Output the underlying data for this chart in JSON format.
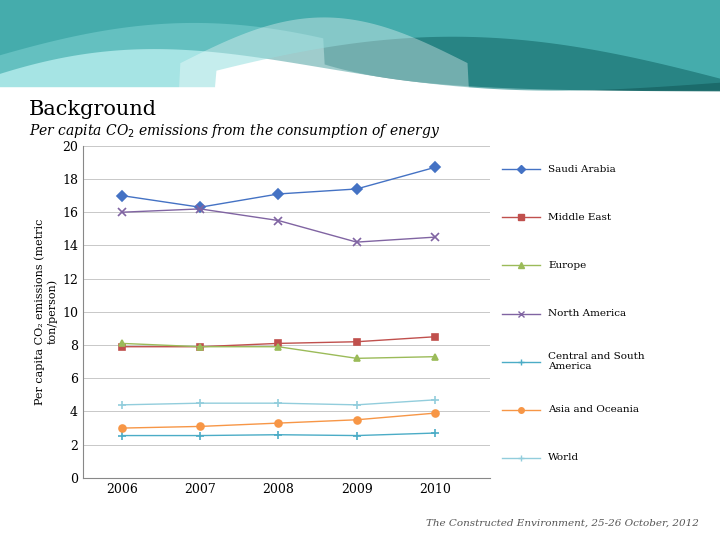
{
  "title": "Background",
  "subtitle": "Per capita CO₂ emissions from the consumption of energy",
  "ylabel": "Per capita CO₂ emissions (metric\nton/person)",
  "years": [
    2006,
    2007,
    2008,
    2009,
    2010
  ],
  "ylim": [
    0,
    20
  ],
  "yticks": [
    0,
    2,
    4,
    6,
    8,
    10,
    12,
    14,
    16,
    18,
    20
  ],
  "series": {
    "Saudi Arabia": {
      "values": [
        17.0,
        16.3,
        17.1,
        17.4,
        18.7
      ],
      "color": "#4472C4",
      "marker": "D",
      "markersize": 5
    },
    "Middle East": {
      "values": [
        7.9,
        7.9,
        8.1,
        8.2,
        8.5
      ],
      "color": "#C0504D",
      "marker": "s",
      "markersize": 5
    },
    "Europe": {
      "values": [
        8.1,
        7.9,
        7.9,
        7.2,
        7.3
      ],
      "color": "#9BBB59",
      "marker": "^",
      "markersize": 5
    },
    "North America": {
      "values": [
        16.0,
        16.2,
        15.5,
        14.2,
        14.5
      ],
      "color": "#8064A2",
      "marker": "x",
      "markersize": 6
    },
    "Central and South America": {
      "values": [
        2.55,
        2.55,
        2.6,
        2.55,
        2.7
      ],
      "color": "#4BACC6",
      "marker": "+",
      "markersize": 6
    },
    "Asia and Oceania": {
      "values": [
        3.0,
        3.1,
        3.3,
        3.5,
        3.9
      ],
      "color": "#F79646",
      "marker": "o",
      "markersize": 5
    },
    "World": {
      "values": [
        4.4,
        4.5,
        4.5,
        4.4,
        4.7
      ],
      "color": "#92CDDC",
      "marker": "+",
      "markersize": 6
    }
  },
  "footer": "The Constructed Environment, 25-26 October, 2012",
  "background_color": "#FFFFFF",
  "legend_bg_color": "#8C8C8C"
}
